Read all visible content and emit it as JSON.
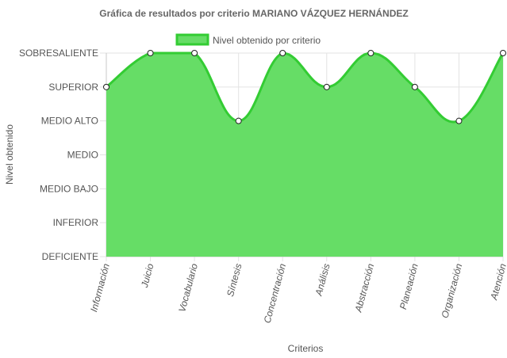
{
  "chart_data": {
    "type": "area",
    "title": "Gráfica de resultados por criterio MARIANO VÁZQUEZ HERNÁNDEZ",
    "xlabel": "Criterios",
    "ylabel": "Nivel obtenido",
    "legend": {
      "position": "top",
      "entries": [
        "Nivel obtenido por criterio"
      ]
    },
    "y_levels": [
      "DEFICIENTE",
      "INFERIOR",
      "MEDIO BAJO",
      "MEDIO",
      "MEDIO ALTO",
      "SUPERIOR",
      "SOBRESALIENTE"
    ],
    "categories": [
      "Información",
      "Juicio",
      "Vocabulario",
      "Síntesis",
      "Concentración",
      "Análisis",
      "Abstracción",
      "Planeación",
      "Organización",
      "Atención"
    ],
    "series": [
      {
        "name": "Nivel obtenido por criterio",
        "values": [
          "SUPERIOR",
          "SOBRESALIENTE",
          "SOBRESALIENTE",
          "MEDIO ALTO",
          "SOBRESALIENTE",
          "SUPERIOR",
          "SOBRESALIENTE",
          "SUPERIOR",
          "MEDIO ALTO",
          "SOBRESALIENTE"
        ],
        "fill_color": "#66dd66",
        "line_color": "#33cc33"
      }
    ],
    "grid": true
  }
}
